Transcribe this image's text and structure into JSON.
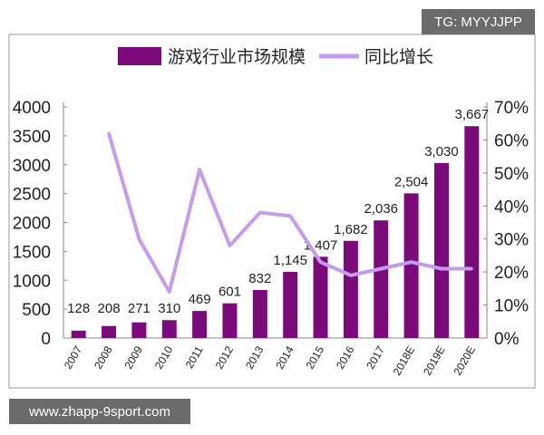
{
  "watermark_top": "TG: MYYJJPP",
  "watermark_bottom": "www.zhapp-9sport.com",
  "chart_data": {
    "type": "bar",
    "title": "",
    "categories": [
      "2007",
      "2008",
      "2009",
      "2010",
      "2011",
      "2012",
      "2013",
      "2014",
      "2015",
      "2016",
      "2017",
      "2018E",
      "2019E",
      "2020E"
    ],
    "series": [
      {
        "name": "游戏行业市场规模",
        "type": "bar",
        "axis": "left",
        "color": "#7b0a7b",
        "values": [
          128,
          208,
          271,
          310,
          469,
          601,
          832,
          1145,
          1407,
          1682,
          2036,
          2504,
          3030,
          3667
        ],
        "labels": [
          "128",
          "208",
          "271",
          "310",
          "469",
          "601",
          "832",
          "1,145",
          "1,407",
          "1,682",
          "2,036",
          "2,504",
          "3,030",
          "3,667"
        ]
      },
      {
        "name": "同比增长",
        "type": "line",
        "axis": "right",
        "color": "#c59bf0",
        "values": [
          null,
          62,
          30,
          14,
          51,
          28,
          38,
          37,
          23,
          19,
          21,
          23,
          21,
          21
        ]
      }
    ],
    "left_axis": {
      "ylim": [
        0,
        4000
      ],
      "ticks": [
        "0",
        "500",
        "1000",
        "1500",
        "2000",
        "2500",
        "3000",
        "3500",
        "4000"
      ]
    },
    "right_axis": {
      "ylim": [
        0,
        70
      ],
      "ticks": [
        "0%",
        "10%",
        "20%",
        "30%",
        "40%",
        "50%",
        "60%",
        "70%"
      ]
    },
    "legend": "top"
  }
}
